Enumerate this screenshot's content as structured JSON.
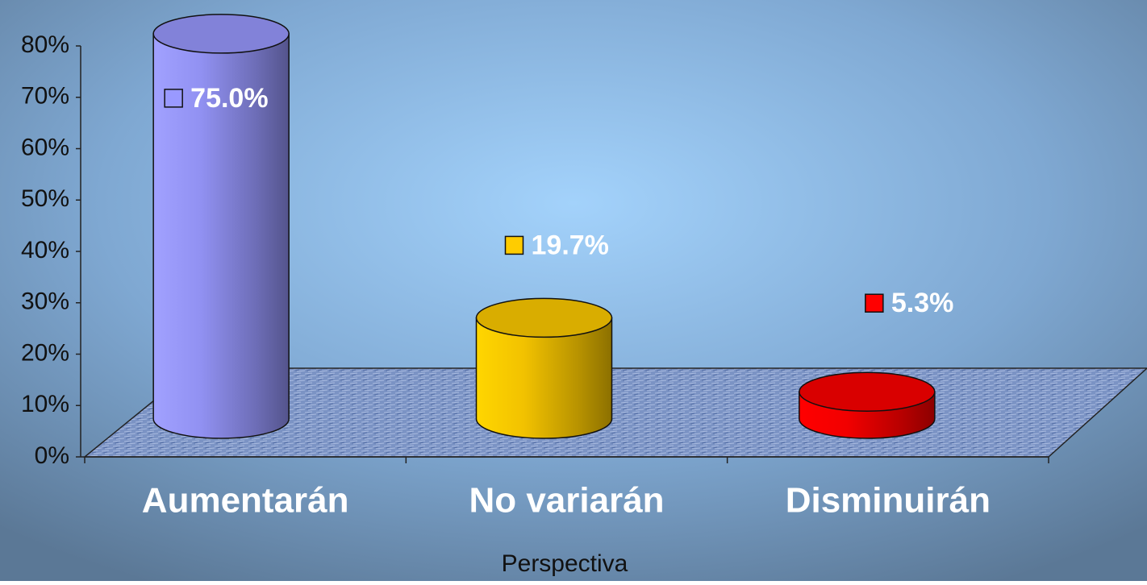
{
  "chart_data": {
    "type": "bar3d",
    "categories": [
      "Aumentarán",
      "No variarán",
      "Disminuirán"
    ],
    "values": [
      75.0,
      19.7,
      5.3
    ],
    "value_labels": [
      "75.0%",
      "19.7%",
      "5.3%"
    ],
    "colors": [
      "#9999ff",
      "#ffcc00",
      "#ff0000"
    ],
    "x_label": "Perspectiva",
    "ylim": [
      0,
      80
    ],
    "yticks": [
      {
        "value": 0,
        "label": "0%"
      },
      {
        "value": 10,
        "label": "10%"
      },
      {
        "value": 20,
        "label": "20%"
      },
      {
        "value": 30,
        "label": "30%"
      },
      {
        "value": 40,
        "label": "40%"
      },
      {
        "value": 50,
        "label": "50%"
      },
      {
        "value": 60,
        "label": "60%"
      },
      {
        "value": 70,
        "label": "70%"
      },
      {
        "value": 80,
        "label": "80%"
      }
    ]
  }
}
